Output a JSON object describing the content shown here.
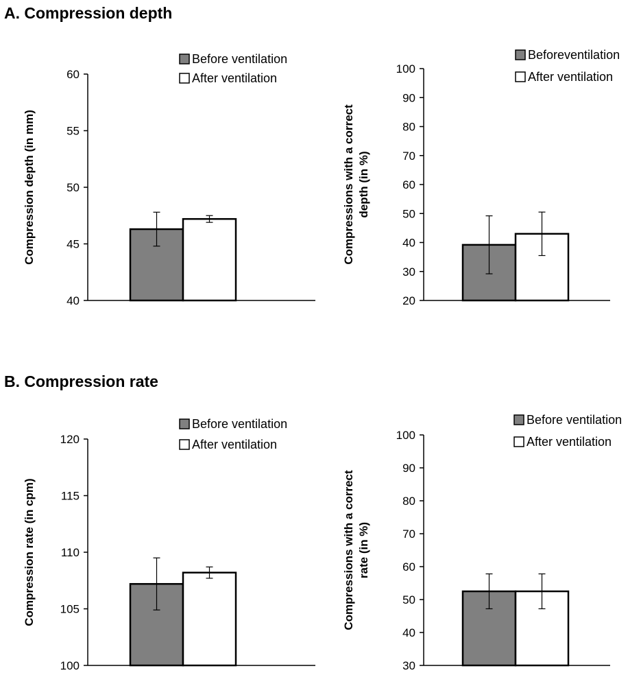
{
  "sections": {
    "a_title": "A. Compression depth",
    "b_title": "B. Compression rate"
  },
  "colors": {
    "before": "#808080",
    "after": "#ffffff",
    "axis": "#000000"
  },
  "chart_data": [
    {
      "type": "bar",
      "title": "",
      "xlabel": "",
      "ylabel": "Compression depth (in mm)",
      "ylim": [
        40,
        60
      ],
      "yticks": [
        40,
        45,
        50,
        55,
        60
      ],
      "categories": [
        ""
      ],
      "series": [
        {
          "name": "Before ventilation",
          "values": [
            46.3
          ],
          "error": [
            1.5
          ]
        },
        {
          "name": "After ventilation",
          "values": [
            47.2
          ],
          "error": [
            0.3
          ]
        }
      ],
      "legend": "top-right"
    },
    {
      "type": "bar",
      "title": "",
      "xlabel": "",
      "ylabel": [
        "Compressions with a correct",
        "depth (in %)"
      ],
      "ylim": [
        20,
        100
      ],
      "yticks": [
        20,
        30,
        40,
        50,
        60,
        70,
        80,
        90,
        100
      ],
      "categories": [
        ""
      ],
      "series": [
        {
          "name": "Beforeventilation",
          "values": [
            39.2
          ],
          "error": [
            10
          ]
        },
        {
          "name": "After ventilation",
          "values": [
            43
          ],
          "error": [
            7.5
          ]
        }
      ],
      "legend": "top-right"
    },
    {
      "type": "bar",
      "title": "",
      "xlabel": "",
      "ylabel": "Compression rate (in cpm)",
      "ylim": [
        100,
        120
      ],
      "yticks": [
        100,
        105,
        110,
        115,
        120
      ],
      "categories": [
        ""
      ],
      "series": [
        {
          "name": "Before ventilation",
          "values": [
            107.2
          ],
          "error": [
            2.3
          ]
        },
        {
          "name": "After ventilation",
          "values": [
            108.2
          ],
          "error": [
            0.5
          ]
        }
      ],
      "legend": "top-right"
    },
    {
      "type": "bar",
      "title": "",
      "xlabel": "",
      "ylabel": [
        "Compressions with a correct",
        "rate (in %)"
      ],
      "ylim": [
        30,
        100
      ],
      "yticks": [
        30,
        40,
        50,
        60,
        70,
        80,
        90,
        100
      ],
      "categories": [
        ""
      ],
      "series": [
        {
          "name": "Before ventilation",
          "values": [
            52.5
          ],
          "error": [
            5.3
          ]
        },
        {
          "name": "After ventilation",
          "values": [
            52.5
          ],
          "error": [
            5.3
          ]
        }
      ],
      "legend": "top-right"
    }
  ]
}
